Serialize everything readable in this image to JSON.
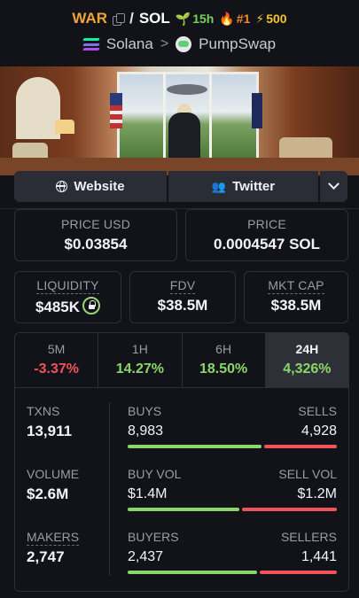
{
  "header": {
    "symbol": "WAR",
    "slash": "/",
    "quote": "SOL",
    "age": "15h",
    "rank": "#1",
    "boosts": "500",
    "chain": "Solana",
    "chevron": ">",
    "dex": "PumpSwap"
  },
  "links": {
    "website": "Website",
    "twitter": "Twitter"
  },
  "prices": {
    "usd_label": "PRICE USD",
    "usd_value": "$0.03854",
    "native_label": "PRICE",
    "native_value": "0.0004547 SOL"
  },
  "metrics": {
    "liquidity_label": "LIQUIDITY",
    "liquidity_value": "$485K",
    "fdv_label": "FDV",
    "fdv_value": "$38.5M",
    "mcap_label": "MKT CAP",
    "mcap_value": "$38.5M"
  },
  "tabs": [
    {
      "label": "5M",
      "value": "-3.37%"
    },
    {
      "label": "1H",
      "value": "14.27%"
    },
    {
      "label": "6H",
      "value": "18.50%"
    },
    {
      "label": "24H",
      "value": "4,326%"
    }
  ],
  "active_tab": "24H",
  "stats": {
    "txns_label": "TXNS",
    "txns_value": "13,911",
    "volume_label": "VOLUME",
    "volume_value": "$2.6M",
    "makers_label": "MAKERS",
    "makers_value": "2,747",
    "buys_label": "BUYS",
    "buys_value": "8,983",
    "sells_label": "SELLS",
    "sells_value": "4,928",
    "buys_share": 0.646,
    "buyvol_label": "BUY VOL",
    "buyvol_value": "$1.4M",
    "sellvol_label": "SELL VOL",
    "sellvol_value": "$1.2M",
    "buyvol_share": 0.54,
    "buyers_label": "BUYERS",
    "buyers_value": "2,437",
    "sellers_label": "SELLERS",
    "sellers_value": "1,441",
    "buyers_share": 0.628
  },
  "colors": {
    "accent_symbol": "#f0a43a",
    "positive": "#8bd66a",
    "negative": "#f0545a",
    "age": "#76d25b",
    "rank": "#f08a2a",
    "boost": "#f4c430"
  }
}
